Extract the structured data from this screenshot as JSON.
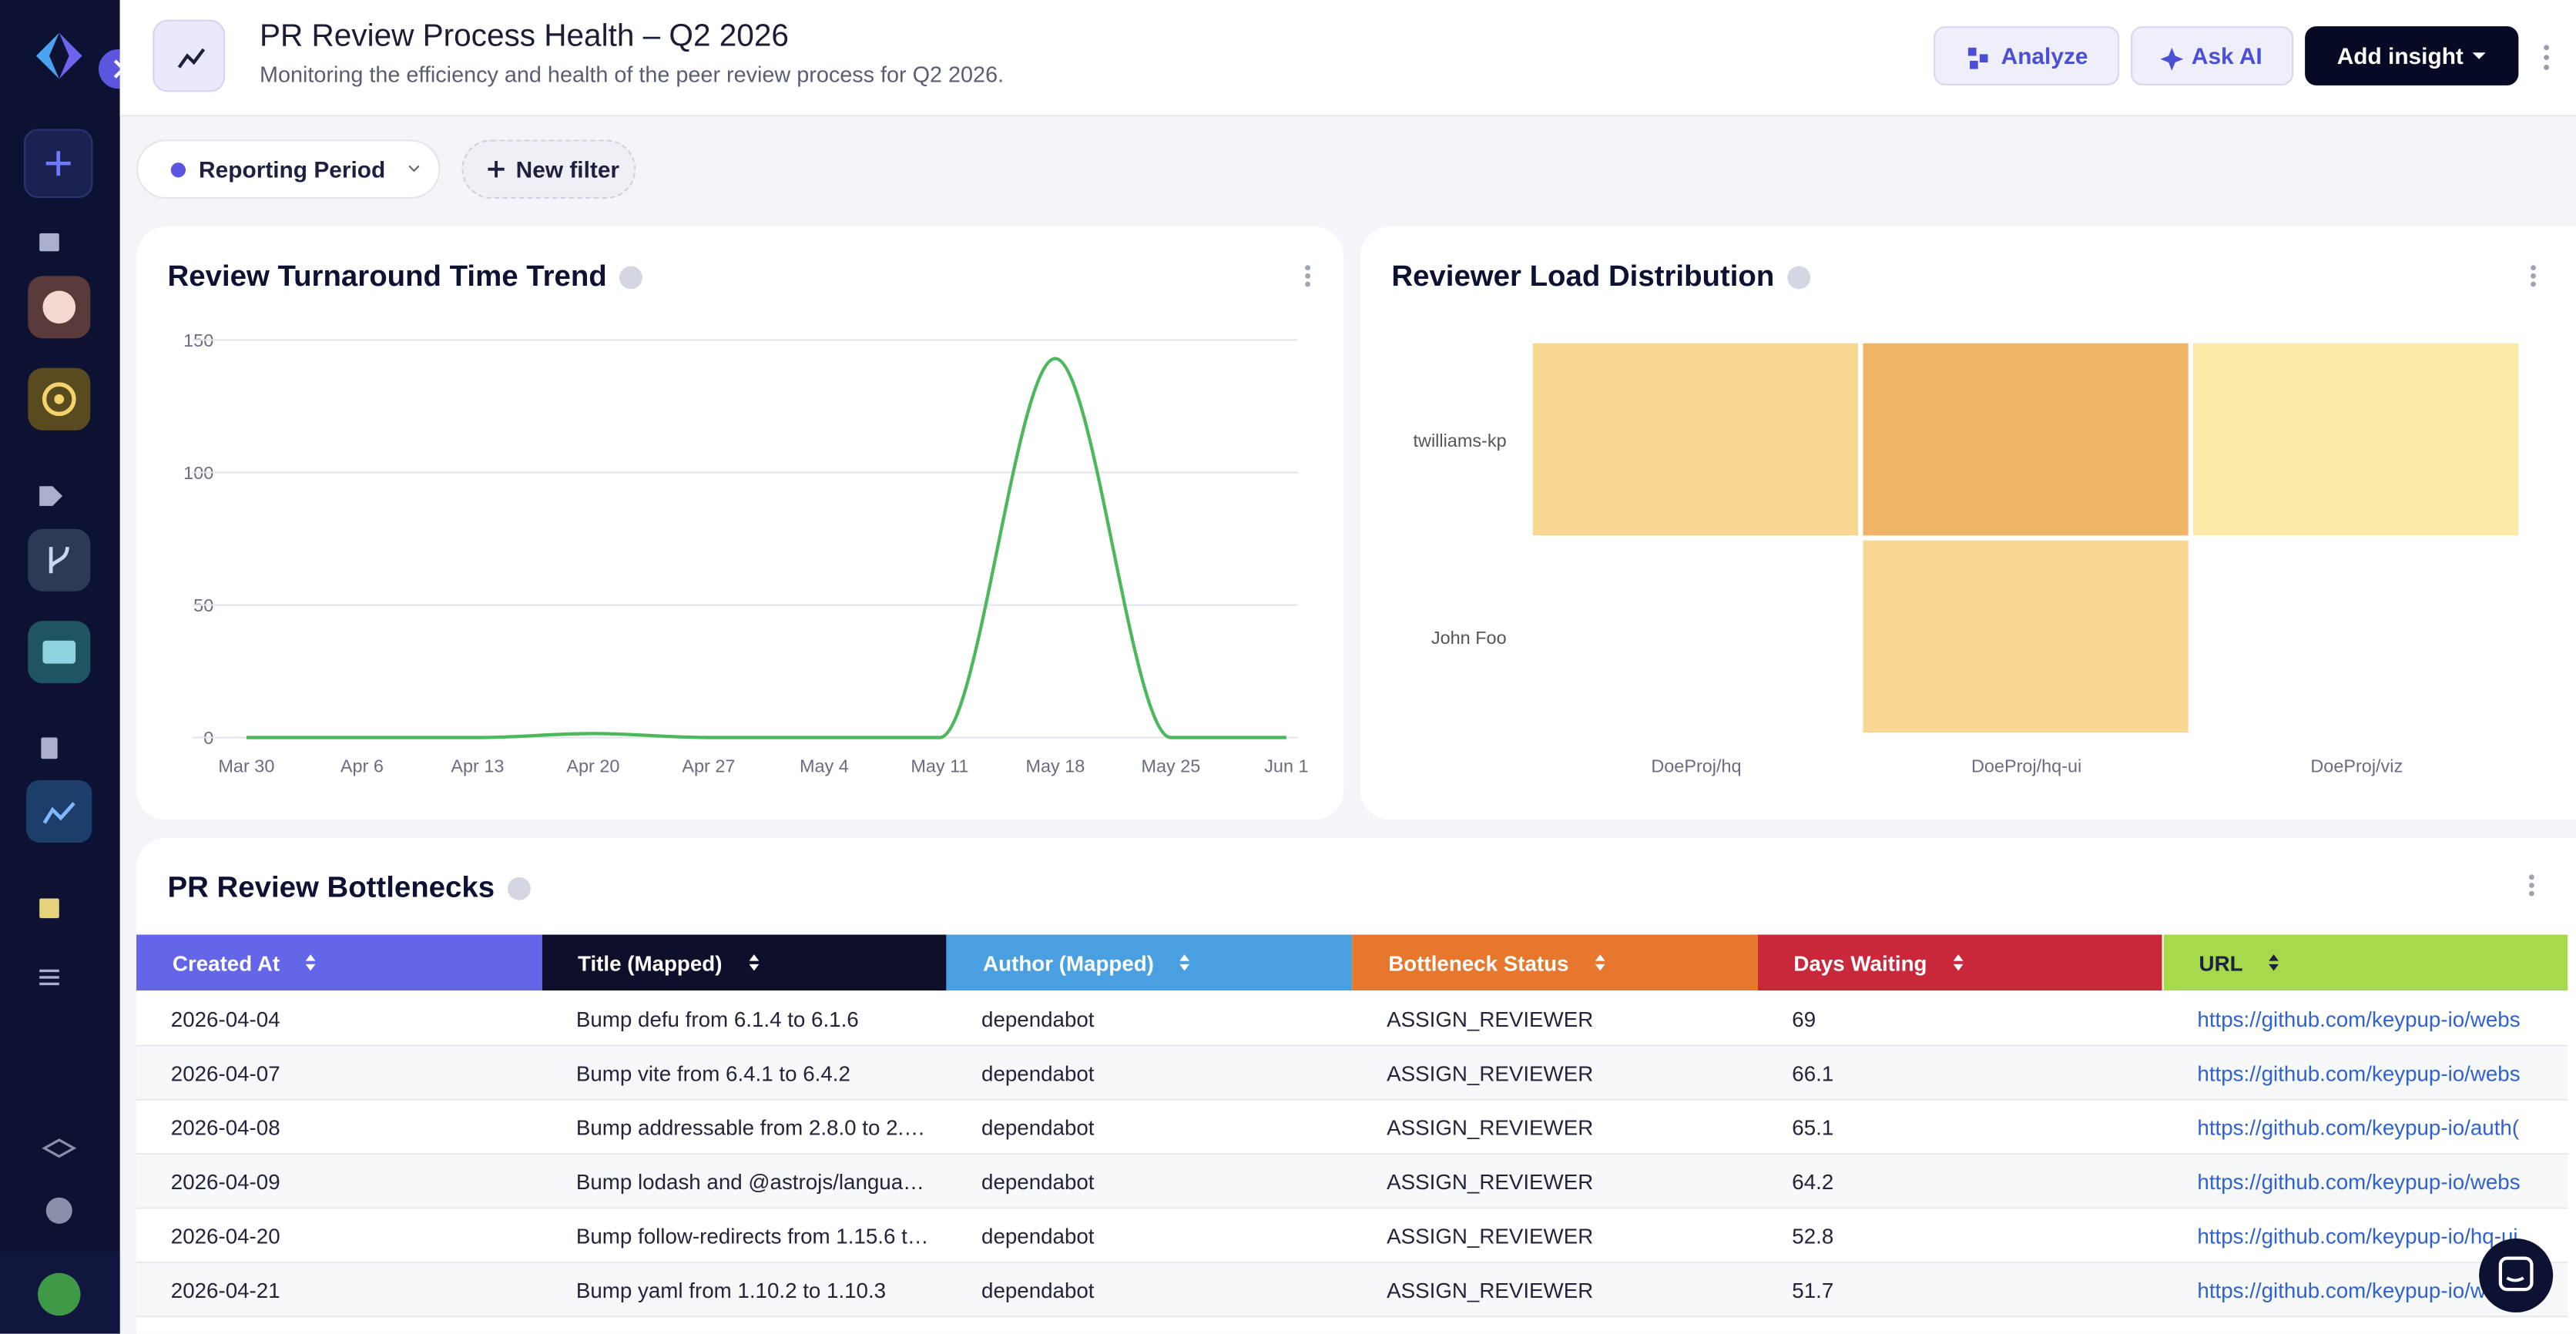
{
  "header": {
    "title": "PR Review Process Health – Q2 2026",
    "subtitle": "Monitoring the efficiency and health of the peer review process for Q2 2026.",
    "buttons": [
      "Analyze",
      "Ask AI",
      "Add insight"
    ]
  },
  "filters": [
    "Reporting Period",
    "New filter"
  ],
  "chart_data": [
    {
      "type": "line",
      "title": "Review Turnaround Time Trend",
      "categories": [
        "Mar 30",
        "Apr 6",
        "Apr 13",
        "Apr 20",
        "Apr 27",
        "May 4",
        "May 11",
        "May 18",
        "May 25",
        "Jun 1"
      ],
      "series": [
        {
          "color": "#4cb85c",
          "values": [
            0,
            0,
            0,
            1.5,
            0,
            0,
            0,
            143,
            0,
            0
          ]
        }
      ],
      "ylim": [
        0,
        150
      ],
      "yticks": [
        0,
        50,
        100,
        150
      ],
      "grid": true
    },
    {
      "type": "heatmap",
      "title": "Reviewer Load Distribution",
      "rows": [
        "twilliams-kp",
        "John Foo"
      ],
      "columns": [
        "DoeProj/hq",
        "DoeProj/hq-ui",
        "DoeProj/viz"
      ],
      "values": [
        [
          3,
          5,
          2
        ],
        [
          null,
          3,
          null
        ]
      ],
      "colors": [
        "#fbe9a8",
        "#efb466"
      ]
    }
  ],
  "table": {
    "title": "PR Review Bottlenecks",
    "columns": [
      {
        "name": "Created At",
        "color": "#6366e8"
      },
      {
        "name": "Title (Mapped)",
        "color": "#0d0f2b"
      },
      {
        "name": "Author (Mapped)",
        "color": "#4a9fe0"
      },
      {
        "name": "Bottleneck Status",
        "color": "#e8772e"
      },
      {
        "name": "Days Waiting",
        "color": "#c9283a"
      },
      {
        "name": "URL",
        "color": "#a6d94c"
      }
    ],
    "rows": [
      [
        "2026-04-04",
        "Bump defu from 6.1.4 to 6.1.6",
        "dependabot",
        "ASSIGN_REVIEWER",
        69,
        "https://github.com/keypup-io/webs"
      ],
      [
        "2026-04-07",
        "Bump vite from 6.4.1 to 6.4.2",
        "dependabot",
        "ASSIGN_REVIEWER",
        66.1,
        "https://github.com/keypup-io/webs"
      ],
      [
        "2026-04-08",
        "Bump addressable from 2.8.0 to 2.…",
        "dependabot",
        "ASSIGN_REVIEWER",
        65.1,
        "https://github.com/keypup-io/auth("
      ],
      [
        "2026-04-09",
        "Bump lodash and @astrojs/langua…",
        "dependabot",
        "ASSIGN_REVIEWER",
        64.2,
        "https://github.com/keypup-io/webs"
      ],
      [
        "2026-04-20",
        "Bump follow-redirects from 1.15.6 t…",
        "dependabot",
        "ASSIGN_REVIEWER",
        52.8,
        "https://github.com/keypup-io/hq-ui"
      ],
      [
        "2026-04-21",
        "Bump yaml from 1.10.2 to 1.10.3",
        "dependabot",
        "ASSIGN_REVIEWER",
        51.7,
        "https://github.com/keypup-io/webs"
      ]
    ]
  }
}
